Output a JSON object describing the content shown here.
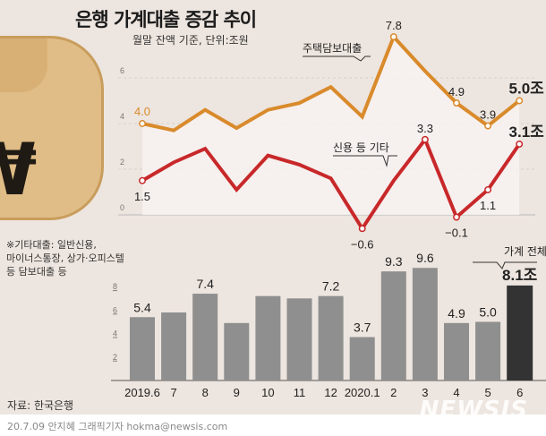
{
  "title": "은행 가계대출 증감 추이",
  "subtitle": "월말 잔액 기준, 단위:조원",
  "note": [
    "※기타대출: 일반신용,",
    "마이너스통장, 상가·오피스텔",
    "등 담보대출 등"
  ],
  "source": "자료: 한국은행",
  "credit": "20.7.09 안지혜 그래픽기자 hokma@newsis.com",
  "logo": "NEWSIS",
  "colors": {
    "housing": "#d98a2b",
    "other": "#c8282a",
    "bar": "#8f8f8f",
    "bar_last": "#333333",
    "background": "#ede5df"
  },
  "chart_data": [
    {
      "type": "line",
      "categories": [
        "2019.6",
        "7",
        "8",
        "9",
        "10",
        "11",
        "12",
        "2020.1",
        "2",
        "3",
        "4",
        "5",
        "6"
      ],
      "ylim": [
        -1,
        8
      ],
      "yticks": [
        0,
        2,
        4,
        6
      ],
      "grid": true,
      "series": [
        {
          "name": "주택담보대출",
          "values": [
            4.0,
            3.7,
            4.6,
            3.8,
            4.6,
            4.9,
            5.6,
            4.3,
            7.8,
            6.3,
            4.9,
            3.9,
            5.0
          ],
          "labels": {
            "0": "4.0",
            "8": "7.8",
            "10": "4.9",
            "11": "3.9",
            "12": "5.0조"
          }
        },
        {
          "name": "신용 등 기타",
          "values": [
            1.5,
            2.3,
            2.9,
            1.1,
            2.6,
            2.2,
            1.6,
            -0.6,
            1.5,
            3.3,
            -0.1,
            1.1,
            3.1
          ],
          "labels": {
            "0": "1.5",
            "7": "-0.6",
            "9": "3.3",
            "10": "-0.1",
            "11": "1.1",
            "12": "3.1조"
          }
        }
      ]
    },
    {
      "type": "bar",
      "categories": [
        "2019.6",
        "7",
        "8",
        "9",
        "10",
        "11",
        "12",
        "2020.1",
        "2",
        "3",
        "4",
        "5",
        "6"
      ],
      "values": [
        5.4,
        5.8,
        7.4,
        4.9,
        7.2,
        7.0,
        7.2,
        3.7,
        9.3,
        9.6,
        4.9,
        5.0,
        8.1
      ],
      "labels": {
        "0": "5.4",
        "2": "7.4",
        "6": "7.2",
        "7": "3.7",
        "8": "9.3",
        "9": "9.6",
        "10": "4.9",
        "11": "5.0",
        "12": "8.1조"
      },
      "yticks": [
        2,
        4,
        6,
        8
      ],
      "ylim": [
        0,
        10
      ],
      "annotation": "가계 전체"
    }
  ]
}
